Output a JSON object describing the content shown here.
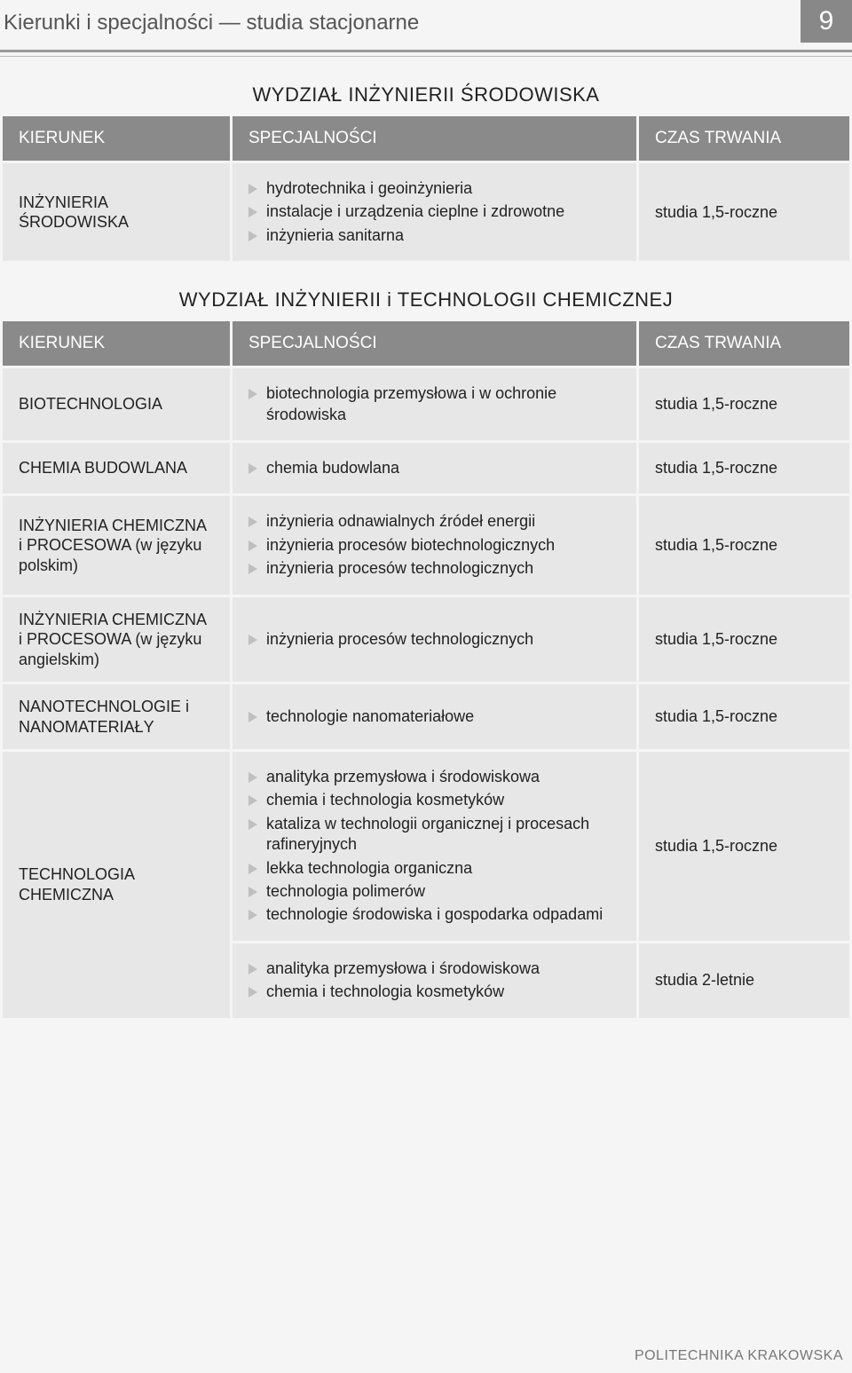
{
  "page": {
    "header_title": "Kierunki i specjalności — studia stacjonarne",
    "page_number": "9",
    "footer": "POLITECHNIKA KRAKOWSKA"
  },
  "columns": {
    "kierunek": "KIERUNEK",
    "specjalnosci": "SPECJALNOŚCI",
    "czas": "CZAS TRWANIA"
  },
  "colors": {
    "header_bg": "#8a8a8a",
    "header_fg": "#ffffff",
    "cell_bg": "#e7e7e7",
    "bullet": "#bfbfbf",
    "page_bg": "#f5f5f5",
    "rule": "#999999"
  },
  "sections": [
    {
      "title": "WYDZIAŁ INŻYNIERII ŚRODOWISKA",
      "rows": [
        {
          "kierunek": "INŻYNIERIA ŚRODOWISKA",
          "specs": [
            "hydrotechnika i geoinżynieria",
            "instalacje i urządzenia cieplne i zdrowotne",
            "inżynieria sanitarna"
          ],
          "czas": "studia 1,5-roczne"
        }
      ]
    },
    {
      "title": "WYDZIAŁ INŻYNIERII i TECHNOLOGII CHEMICZNEJ",
      "rows": [
        {
          "kierunek": "BIOTECHNOLOGIA",
          "specs": [
            "biotechnologia przemysłowa i w ochronie środowiska"
          ],
          "czas": "studia 1,5-roczne"
        },
        {
          "kierunek": "CHEMIA BUDOWLANA",
          "specs": [
            "chemia budowlana"
          ],
          "czas": "studia 1,5-roczne"
        },
        {
          "kierunek": "INŻYNIERIA CHEMICZNA i PROCESOWA (w języku polskim)",
          "specs": [
            "inżynieria odnawialnych źródeł energii",
            "inżynieria procesów biotechnologicznych",
            "inżynieria procesów technologicznych"
          ],
          "czas": "studia 1,5-roczne"
        },
        {
          "kierunek": "INŻYNIERIA CHEMICZNA i PROCESOWA (w języku angielskim)",
          "specs": [
            "inżynieria procesów technologicznych"
          ],
          "czas": "studia 1,5-roczne"
        },
        {
          "kierunek": "NANOTECHNOLOGIE i NANOMATERIAŁY",
          "specs": [
            "technologie nanomateriałowe"
          ],
          "czas": "studia 1,5-roczne"
        },
        {
          "kierunek": "TECHNOLOGIA CHEMICZNA",
          "kierunek_rowspan": 2,
          "blocks": [
            {
              "specs": [
                "analityka przemysłowa i środowiskowa",
                "chemia i technologia kosmetyków",
                "kataliza w technologii organicznej i procesach rafineryjnych",
                "lekka technologia organiczna",
                "technologia polimerów",
                "technologie środowiska i gospodarka odpadami"
              ],
              "czas": "studia 1,5-roczne"
            },
            {
              "specs": [
                "analityka przemysłowa i środowiskowa",
                "chemia i technologia kosmetyków"
              ],
              "czas": "studia 2-letnie"
            }
          ]
        }
      ]
    }
  ]
}
